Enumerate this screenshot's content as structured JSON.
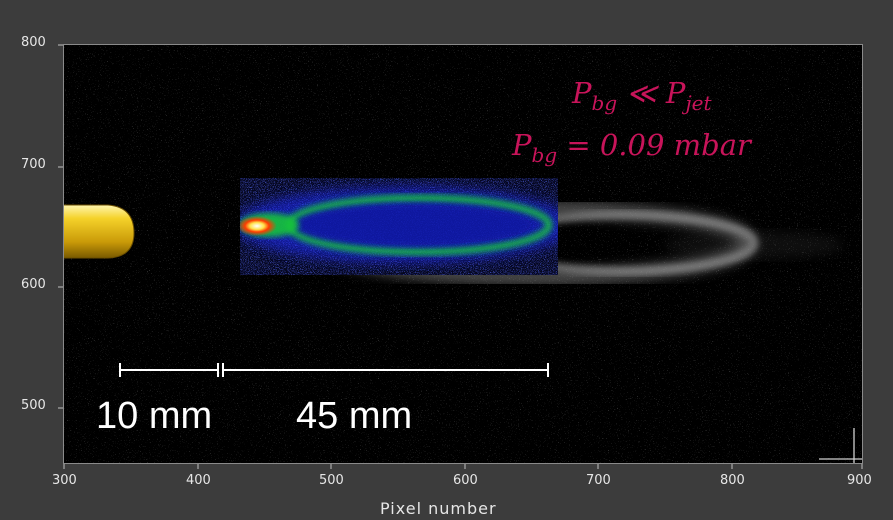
{
  "plot": {
    "y_ticks": [
      "800",
      "700",
      "600",
      "500"
    ],
    "x_ticks": [
      "300",
      "400",
      "500",
      "600",
      "700",
      "800",
      "900"
    ],
    "x_axis_title": "Pixel number"
  },
  "annotation": {
    "line1_main": "P",
    "line1_sub": "bg",
    "line1_rel": " ≪ ",
    "line1_main2": "P",
    "line1_sub2": "jet",
    "line2_main": "P",
    "line2_sub": "bg",
    "line2_rest": " = 0.09 mbar"
  },
  "scale_bars": {
    "first_label": "10 mm",
    "second_label": "45 mm"
  },
  "colors": {
    "annotation": "#c8145a",
    "nozzle": "#e6c21c",
    "plume_core": "#ffffff",
    "plume_hot": "#ff3a00",
    "plume_mid": "#16c43a",
    "plume_outer": "#1a2cff"
  }
}
